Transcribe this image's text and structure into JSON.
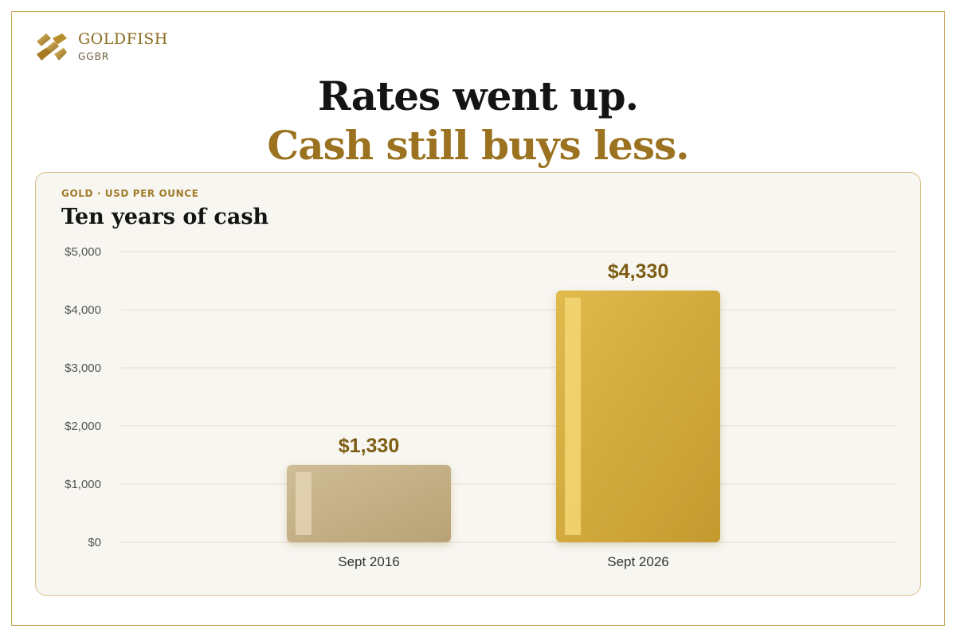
{
  "brand": {
    "name": "GOLDFISH",
    "ticker": "GGBR"
  },
  "headline": {
    "line1": "Rates went up.",
    "line2": "Cash still buys less."
  },
  "card": {
    "eyebrow": "GOLD · USD PER OUNCE",
    "title": "Ten years of cash"
  },
  "colors": {
    "gold": "#9a7220",
    "accent_border": "#c9a55c",
    "bar_2016": "#c8b48a",
    "bar_2026": "#d8b043",
    "grid": "#e3ded3"
  },
  "chart_data": {
    "type": "bar",
    "title": "Ten years of cash",
    "categories": [
      "Sept 2016",
      "Sept 2026"
    ],
    "values": [
      1330,
      4330
    ],
    "value_labels": [
      "$1,330",
      "$4,330"
    ],
    "ylabel": "",
    "xlabel": "",
    "ylim": [
      0,
      5000
    ],
    "yticks": [
      0,
      1000,
      2000,
      3000,
      4000,
      5000
    ],
    "ytick_labels": [
      "$0",
      "$1,000",
      "$2,000",
      "$3,000",
      "$4,000",
      "$5,000"
    ],
    "grid": true
  }
}
